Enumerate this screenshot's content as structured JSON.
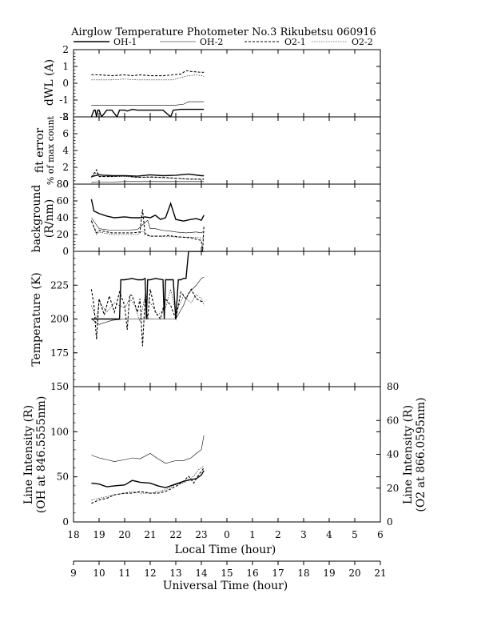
{
  "header": {
    "title": "Airglow Temperature Photometer No.3  Rikubetsu   060916"
  },
  "legend": [
    {
      "name": "OH-1",
      "style": "solid-bold"
    },
    {
      "name": "OH-2",
      "style": "solid-thin"
    },
    {
      "name": "O2-1",
      "style": "dashed-bold"
    },
    {
      "name": "O2-2",
      "style": "dotted-thin"
    }
  ],
  "axes": {
    "local_time_label": "Local Time (hour)",
    "universal_time_label": "Universal Time (hour)",
    "local_ticks": [
      "18",
      "19",
      "20",
      "21",
      "22",
      "23",
      "0",
      "1",
      "2",
      "3",
      "4",
      "5",
      "6"
    ],
    "ut_ticks": [
      "9",
      "10",
      "11",
      "12",
      "13",
      "14",
      "15",
      "16",
      "17",
      "18",
      "19",
      "20",
      "21"
    ]
  },
  "panel_labels": {
    "dwl": "dWL (A)",
    "fit_error_1": "fit error",
    "fit_error_2": "% of max count",
    "background_1": "background",
    "background_2": "(R/nm)",
    "temperature": "Temperature (K)",
    "intensity_left_1": "Line Intensity (R)",
    "intensity_left_2": "(OH at 846.5555nm)",
    "intensity_right_1": "Line Intensity (R)",
    "intensity_right_2": "(O2 at 866.0595nm)"
  },
  "chart_data": [
    {
      "id": "dwl",
      "type": "line",
      "ylabel": "dWL (A)",
      "xlim": [
        18,
        30
      ],
      "ylim": [
        -2,
        2
      ],
      "yticks": [
        -2,
        -1,
        0,
        1,
        2
      ],
      "series": [
        {
          "name": "OH-1",
          "x": [
            18.7,
            18.8,
            18.85,
            18.9,
            18.95,
            19.0,
            19.1,
            19.3,
            19.5,
            19.7,
            19.8,
            20.0,
            20.1,
            20.3,
            20.5,
            20.7,
            21.0,
            21.5,
            21.8,
            21.9,
            22.2,
            22.5,
            23.0,
            23.1
          ],
          "y": [
            -2,
            -1.6,
            -1.6,
            -2,
            -1.6,
            -1.6,
            -2,
            -1.6,
            -1.6,
            -2,
            -1.6,
            -1.6,
            -1.65,
            -1.55,
            -1.6,
            -1.6,
            -1.6,
            -1.6,
            -2,
            -1.6,
            -1.55,
            -1.55,
            -1.55,
            -1.55
          ]
        },
        {
          "name": "OH-2",
          "x": [
            18.7,
            19.0,
            19.5,
            20.0,
            20.5,
            21.0,
            21.5,
            22.0,
            22.3,
            22.5,
            22.8,
            23.0,
            23.1
          ],
          "y": [
            -1.3,
            -1.3,
            -1.3,
            -1.3,
            -1.3,
            -1.3,
            -1.3,
            -1.3,
            -1.25,
            -1.1,
            -1.1,
            -1.1,
            -1.1
          ]
        },
        {
          "name": "O2-1",
          "x": [
            18.7,
            19.0,
            19.5,
            20.0,
            20.3,
            20.6,
            21.0,
            21.5,
            21.9,
            22.2,
            22.4,
            22.6,
            23.0,
            23.1
          ],
          "y": [
            0.5,
            0.5,
            0.45,
            0.5,
            0.45,
            0.5,
            0.45,
            0.45,
            0.5,
            0.55,
            0.75,
            0.7,
            0.65,
            0.65
          ]
        },
        {
          "name": "O2-2",
          "x": [
            18.7,
            19.0,
            19.5,
            20.0,
            20.5,
            21.0,
            21.5,
            21.9,
            22.2,
            22.5,
            22.8,
            23.0,
            23.1
          ],
          "y": [
            0.2,
            0.2,
            0.2,
            0.25,
            0.2,
            0.2,
            0.2,
            0.2,
            0.35,
            0.45,
            0.5,
            0.45,
            0.4
          ]
        }
      ]
    },
    {
      "id": "fit_error",
      "type": "line",
      "ylabel": "fit error / % of max count",
      "xlim": [
        18,
        30
      ],
      "ylim": [
        0,
        8
      ],
      "yticks": [
        0,
        2,
        4,
        6,
        8
      ],
      "series": [
        {
          "name": "OH-1",
          "x": [
            18.7,
            19.0,
            19.5,
            20.0,
            20.5,
            21.0,
            21.5,
            22.0,
            22.5,
            23.0,
            23.1
          ],
          "y": [
            0.9,
            1.1,
            1.0,
            1.0,
            0.95,
            1.1,
            1.0,
            1.05,
            1.2,
            1.0,
            1.0
          ]
        },
        {
          "name": "OH-2",
          "x": [
            18.7,
            19.0,
            19.5,
            20.0,
            20.5,
            21.0,
            21.5,
            22.0,
            22.5,
            23.0,
            23.1
          ],
          "y": [
            0.2,
            0.25,
            0.25,
            0.3,
            0.3,
            0.3,
            0.3,
            0.3,
            0.3,
            0.3,
            0.3
          ]
        },
        {
          "name": "O2-1",
          "x": [
            18.7,
            18.9,
            19.0,
            19.5,
            20.0,
            20.5,
            21.0,
            21.5,
            22.0,
            22.5,
            23.0,
            23.1
          ],
          "y": [
            0.8,
            1.7,
            0.9,
            0.9,
            1.0,
            0.8,
            0.85,
            0.8,
            0.7,
            0.6,
            0.6,
            0.6
          ]
        },
        {
          "name": "O2-2",
          "x": [
            18.7,
            18.9,
            19.0,
            19.5,
            20.0,
            20.5,
            21.0,
            21.5,
            22.0,
            22.5,
            23.0,
            23.1
          ],
          "y": [
            0.9,
            1.4,
            0.9,
            0.9,
            0.9,
            0.8,
            0.8,
            0.75,
            0.7,
            0.6,
            0.55,
            0.55
          ]
        }
      ]
    },
    {
      "id": "background",
      "type": "line",
      "ylabel": "background (R/nm)",
      "xlim": [
        18,
        30
      ],
      "ylim": [
        0,
        80
      ],
      "yticks": [
        0,
        20,
        40,
        60,
        80
      ],
      "series": [
        {
          "name": "OH-1",
          "x": [
            18.7,
            18.8,
            19.0,
            19.3,
            19.6,
            20.0,
            20.3,
            20.6,
            20.8,
            21.0,
            21.2,
            21.4,
            21.6,
            21.8,
            22.0,
            22.3,
            22.6,
            22.8,
            23.0,
            23.1
          ],
          "y": [
            62,
            48,
            45,
            42,
            40,
            41,
            40,
            40,
            41,
            40,
            43,
            38,
            40,
            57,
            38,
            36,
            38,
            39,
            37,
            43
          ]
        },
        {
          "name": "OH-2",
          "x": [
            18.7,
            19.0,
            19.5,
            20.0,
            20.5,
            20.9,
            21.0,
            21.2,
            21.5,
            21.8,
            22.0,
            22.4,
            22.8,
            23.0,
            23.1
          ],
          "y": [
            40,
            27,
            25,
            25,
            26,
            37,
            27,
            27,
            25,
            24,
            23,
            22,
            23,
            22,
            24
          ]
        },
        {
          "name": "O2-1",
          "x": [
            18.7,
            18.9,
            19.0,
            19.5,
            20.0,
            20.3,
            20.6,
            20.7,
            20.8,
            21.0,
            21.5,
            21.7,
            21.9,
            22.2,
            22.6,
            23.0,
            23.05,
            23.1
          ],
          "y": [
            36,
            22,
            25,
            22,
            22,
            22,
            23,
            50,
            20,
            18,
            18,
            19,
            18,
            17,
            16,
            13,
            0,
            30
          ]
        },
        {
          "name": "O2-2",
          "x": [
            18.7,
            18.9,
            19.0,
            19.5,
            20.0,
            20.5,
            20.7,
            21.0,
            21.5,
            22.0,
            22.5,
            23.0,
            23.1
          ],
          "y": [
            37,
            20,
            23,
            20,
            20,
            20,
            24,
            18,
            18,
            17,
            17,
            16,
            16
          ]
        }
      ]
    },
    {
      "id": "temperature",
      "type": "line",
      "ylabel": "Temperature (K)",
      "xlim": [
        18,
        30
      ],
      "ylim": [
        150,
        250
      ],
      "yticks": [
        175,
        200,
        225
      ],
      "series": [
        {
          "name": "OH-1",
          "x": [
            18.7,
            19.0,
            19.8,
            19.85,
            19.9,
            20.0,
            20.3,
            20.5,
            20.7,
            20.8,
            20.85,
            20.9,
            21.0,
            21.2,
            21.5,
            21.55,
            21.6,
            21.7,
            21.9,
            22.0,
            22.1,
            22.2,
            22.3,
            22.4,
            22.5,
            23.0,
            23.1
          ],
          "y": [
            200,
            200,
            200,
            229,
            229,
            229,
            230,
            229,
            229,
            230,
            200,
            229,
            229,
            230,
            229,
            200,
            229,
            229,
            229,
            200,
            229,
            229,
            230,
            230,
            250,
            250,
            250
          ]
        },
        {
          "name": "OH-2",
          "x": [
            18.7,
            19.0,
            19.5,
            20.0,
            20.5,
            21.0,
            21.5,
            22.0,
            22.3,
            22.5,
            22.8,
            23.0,
            23.1
          ],
          "y": [
            200,
            196,
            199,
            200,
            200,
            200,
            200,
            200,
            210,
            219,
            225,
            230,
            231
          ]
        },
        {
          "name": "O2-1",
          "x": [
            18.7,
            18.8,
            18.9,
            19.0,
            19.2,
            19.4,
            19.6,
            19.8,
            20.0,
            20.1,
            20.2,
            20.3,
            20.5,
            20.6,
            20.7,
            20.8,
            20.9,
            21.0,
            21.2,
            21.4,
            21.6,
            21.8,
            22.0,
            22.2,
            22.4,
            22.6,
            22.8,
            23.0,
            23.1
          ],
          "y": [
            222,
            210,
            185,
            215,
            203,
            217,
            205,
            220,
            210,
            192,
            218,
            217,
            205,
            215,
            180,
            215,
            200,
            222,
            205,
            200,
            215,
            210,
            200,
            220,
            215,
            222,
            215,
            213,
            213
          ]
        },
        {
          "name": "O2-2",
          "x": [
            18.7,
            18.9,
            19.0,
            19.3,
            19.6,
            20.0,
            20.2,
            20.4,
            20.6,
            20.8,
            21.0,
            21.3,
            21.6,
            21.8,
            22.0,
            22.3,
            22.6,
            22.8,
            23.0,
            23.1
          ],
          "y": [
            210,
            200,
            213,
            205,
            212,
            208,
            215,
            210,
            198,
            218,
            212,
            203,
            208,
            222,
            205,
            217,
            212,
            218,
            215,
            210
          ]
        }
      ]
    },
    {
      "id": "intensity",
      "type": "line",
      "ylabel": "Line Intensity (R) (OH at 846.5555nm)",
      "y2label": "Line Intensity (R) (O2 at 866.0595nm)",
      "xlim": [
        18,
        30
      ],
      "ylim": [
        0,
        150
      ],
      "yticks": [
        0,
        50,
        100,
        150
      ],
      "y2lim": [
        0,
        80
      ],
      "y2ticks": [
        0,
        20,
        40,
        60,
        80
      ],
      "series": [
        {
          "name": "OH-1",
          "axis": "left",
          "x": [
            18.7,
            19.0,
            19.3,
            19.6,
            20.0,
            20.3,
            20.6,
            21.0,
            21.3,
            21.6,
            22.0,
            22.3,
            22.6,
            22.8,
            23.0,
            23.1
          ],
          "y": [
            43,
            42,
            39,
            40,
            41,
            46,
            44,
            43,
            40,
            38,
            42,
            45,
            47,
            48,
            52,
            57
          ]
        },
        {
          "name": "OH-2",
          "axis": "left",
          "x": [
            18.7,
            19.0,
            19.3,
            19.6,
            20.0,
            20.3,
            20.6,
            21.0,
            21.3,
            21.6,
            22.0,
            22.3,
            22.6,
            22.8,
            23.0,
            23.1
          ],
          "y": [
            74,
            71,
            69,
            67,
            69,
            71,
            70,
            76,
            70,
            65,
            68,
            68,
            71,
            76,
            80,
            96
          ]
        },
        {
          "name": "O2-1",
          "axis": "right",
          "x": [
            18.7,
            19.0,
            19.3,
            19.6,
            20.0,
            20.3,
            20.6,
            21.0,
            21.3,
            21.6,
            22.0,
            22.3,
            22.5,
            22.7,
            22.9,
            23.1
          ],
          "y": [
            11,
            13,
            14,
            16,
            17,
            17,
            18,
            17,
            17,
            18,
            21,
            24,
            27,
            23,
            28,
            32
          ]
        },
        {
          "name": "O2-2",
          "axis": "right",
          "x": [
            18.7,
            19.0,
            19.3,
            19.6,
            20.0,
            20.3,
            20.6,
            21.0,
            21.3,
            21.6,
            22.0,
            22.3,
            22.5,
            22.7,
            22.9,
            23.1
          ],
          "y": [
            13,
            14,
            15,
            16,
            17,
            18,
            17,
            17,
            18,
            19,
            22,
            23,
            25,
            27,
            31,
            33
          ]
        }
      ]
    }
  ]
}
